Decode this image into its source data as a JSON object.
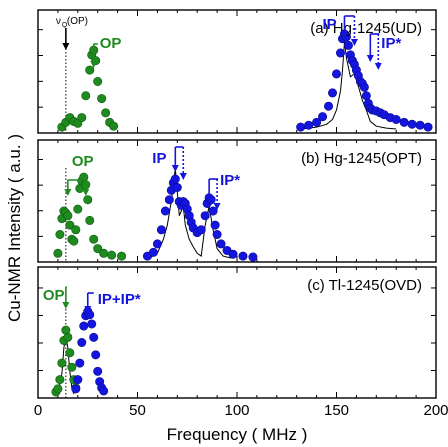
{
  "chart_data": {
    "type": "scatter",
    "ylabel": "Cu-NMR Intensity ( a.u. )",
    "xlabel": "Frequency ( MHz )",
    "xlim": [
      0,
      200
    ],
    "xticks": [
      "0",
      "50",
      "100",
      "150",
      "200"
    ],
    "colors": {
      "op": "#1f8a1f",
      "ip": "#1515e0",
      "sim": "#000000",
      "axis": "#000000"
    },
    "panels": [
      {
        "id": "a",
        "title": "(a) Hg-1245(UD)",
        "vq_label": "ν",
        "vq_sub": "Q",
        "vq_suffix": "(OP)",
        "op_label": "OP",
        "ip_label": "IP",
        "ipstar_label": "IP*",
        "vq_x": 14,
        "op_arrows": [
          28
        ],
        "ip_arrows": [
          154,
          159
        ],
        "ipstar_arrows": [
          167,
          171
        ],
        "op": [
          [
            12,
            0.02
          ],
          [
            14,
            0.07
          ],
          [
            16,
            0.12
          ],
          [
            18,
            0.08
          ],
          [
            20,
            0.06
          ],
          [
            22,
            0.12
          ],
          [
            24,
            0.35
          ],
          [
            26,
            0.62
          ],
          [
            27,
            0.78
          ],
          [
            28,
            0.83
          ],
          [
            29,
            0.72
          ],
          [
            30,
            0.5
          ],
          [
            32,
            0.32
          ],
          [
            34,
            0.17
          ],
          [
            36,
            0.07
          ],
          [
            38,
            0.03
          ]
        ],
        "ip": [
          [
            132,
            0.02
          ],
          [
            136,
            0.04
          ],
          [
            140,
            0.07
          ],
          [
            143,
            0.13
          ],
          [
            146,
            0.24
          ],
          [
            148,
            0.38
          ],
          [
            150,
            0.58
          ],
          [
            152,
            0.8
          ],
          [
            153,
            0.95
          ],
          [
            154,
            1.0
          ],
          [
            155,
            0.97
          ],
          [
            156,
            0.88
          ],
          [
            157,
            0.78
          ],
          [
            158,
            0.72
          ],
          [
            159,
            0.68
          ],
          [
            160,
            0.62
          ],
          [
            161,
            0.56
          ],
          [
            162,
            0.5
          ],
          [
            163,
            0.48
          ],
          [
            164,
            0.44
          ],
          [
            165,
            0.35
          ],
          [
            166,
            0.27
          ],
          [
            167,
            0.22
          ],
          [
            168,
            0.2
          ],
          [
            170,
            0.19
          ],
          [
            172,
            0.17
          ],
          [
            174,
            0.15
          ],
          [
            177,
            0.12
          ],
          [
            180,
            0.1
          ],
          [
            184,
            0.07
          ],
          [
            188,
            0.05
          ],
          [
            192,
            0.04
          ],
          [
            196,
            0.02
          ]
        ],
        "sim": [
          [
            132,
            0.0
          ],
          [
            140,
            0.02
          ],
          [
            145,
            0.05
          ],
          [
            148,
            0.1
          ],
          [
            150,
            0.2
          ],
          [
            152,
            0.4
          ],
          [
            153,
            0.62
          ],
          [
            154,
            0.92
          ],
          [
            155,
            0.75
          ],
          [
            157,
            0.55
          ],
          [
            159,
            0.58
          ],
          [
            161,
            0.45
          ],
          [
            163,
            0.3
          ],
          [
            165,
            0.2
          ],
          [
            167,
            0.08
          ],
          [
            170,
            0.03
          ],
          [
            175,
            0.01
          ],
          [
            180,
            0.0
          ]
        ]
      },
      {
        "id": "b",
        "title": "(b) Hg-1245(OPT)",
        "op_label": "OP",
        "ip_label": "IP",
        "ipstar_label": "IP*",
        "vq_x": 14,
        "op_arrows": [
          15,
          24
        ],
        "ip_arrows": [
          69,
          73
        ],
        "ipstar_arrows": [
          86,
          90
        ],
        "op": [
          [
            10,
            0.05
          ],
          [
            11,
            0.25
          ],
          [
            12,
            0.42
          ],
          [
            13,
            0.5
          ],
          [
            14,
            0.48
          ],
          [
            15,
            0.45
          ],
          [
            16,
            0.35
          ],
          [
            17,
            0.2
          ],
          [
            18,
            0.18
          ],
          [
            19,
            0.3
          ],
          [
            20,
            0.52
          ],
          [
            21,
            0.74
          ],
          [
            22,
            0.82
          ],
          [
            23,
            0.86
          ],
          [
            24,
            0.78
          ],
          [
            25,
            0.62
          ],
          [
            26,
            0.4
          ],
          [
            28,
            0.2
          ],
          [
            30,
            0.1
          ],
          [
            33,
            0.05
          ],
          [
            37,
            0.03
          ],
          [
            42,
            0.02
          ]
        ],
        "ip": [
          [
            55,
            0.02
          ],
          [
            58,
            0.06
          ],
          [
            60,
            0.15
          ],
          [
            62,
            0.3
          ],
          [
            64,
            0.5
          ],
          [
            66,
            0.62
          ],
          [
            67,
            0.72
          ],
          [
            68,
            0.8
          ],
          [
            69,
            0.84
          ],
          [
            70,
            0.75
          ],
          [
            71,
            0.6
          ],
          [
            72,
            0.56
          ],
          [
            73,
            0.6
          ],
          [
            74,
            0.58
          ],
          [
            75,
            0.52
          ],
          [
            76,
            0.45
          ],
          [
            77,
            0.38
          ],
          [
            78,
            0.32
          ],
          [
            80,
            0.27
          ],
          [
            82,
            0.3
          ],
          [
            84,
            0.45
          ],
          [
            85,
            0.58
          ],
          [
            86,
            0.64
          ],
          [
            87,
            0.62
          ],
          [
            88,
            0.5
          ],
          [
            89,
            0.35
          ],
          [
            90,
            0.25
          ],
          [
            92,
            0.15
          ],
          [
            95,
            0.08
          ],
          [
            98,
            0.04
          ],
          [
            103,
            0.02
          ],
          [
            108,
            0.01
          ]
        ],
        "sim": [
          [
            56,
            0.0
          ],
          [
            60,
            0.05
          ],
          [
            63,
            0.2
          ],
          [
            65,
            0.35
          ],
          [
            67,
            0.6
          ],
          [
            69,
            0.95
          ],
          [
            70,
            0.7
          ],
          [
            71,
            0.45
          ],
          [
            72,
            0.5
          ],
          [
            73,
            0.55
          ],
          [
            74,
            0.35
          ],
          [
            76,
            0.2
          ],
          [
            78,
            0.12
          ],
          [
            80,
            0.05
          ],
          [
            82,
            0.02
          ],
          [
            84,
            0.35
          ],
          [
            86,
            0.55
          ],
          [
            88,
            0.3
          ],
          [
            90,
            0.1
          ],
          [
            93,
            0.02
          ],
          [
            97,
            0.0
          ]
        ]
      },
      {
        "id": "c",
        "title": "(c) Tl-1245(OVD)",
        "op_label": "OP",
        "ipip_label": "IP+IP*",
        "vq_x": 14,
        "op_arrows": [
          14
        ],
        "ip_arrows": [
          25
        ],
        "op": [
          [
            9,
            0.02
          ],
          [
            10,
            0.05
          ],
          [
            11,
            0.14
          ],
          [
            12,
            0.3
          ],
          [
            13,
            0.52
          ],
          [
            14,
            0.62
          ],
          [
            15,
            0.55
          ],
          [
            16,
            0.4
          ],
          [
            17,
            0.26
          ],
          [
            18,
            0.14
          ],
          [
            19,
            0.06
          ]
        ],
        "ip": [
          [
            19,
            0.05
          ],
          [
            20,
            0.14
          ],
          [
            21,
            0.3
          ],
          [
            22,
            0.5
          ],
          [
            23,
            0.66
          ],
          [
            24,
            0.76
          ],
          [
            25,
            0.8
          ],
          [
            26,
            0.77
          ],
          [
            27,
            0.68
          ],
          [
            28,
            0.55
          ],
          [
            29,
            0.38
          ],
          [
            30,
            0.22
          ],
          [
            31,
            0.12
          ],
          [
            32,
            0.06
          ],
          [
            33,
            0.03
          ]
        ],
        "sim": [
          [
            10,
            0.0
          ],
          [
            12,
            0.2
          ],
          [
            13,
            0.45
          ],
          [
            14,
            0.56
          ],
          [
            15,
            0.45
          ],
          [
            16,
            0.22
          ],
          [
            17,
            0.06
          ],
          [
            18,
            0.0
          ]
        ]
      }
    ]
  }
}
